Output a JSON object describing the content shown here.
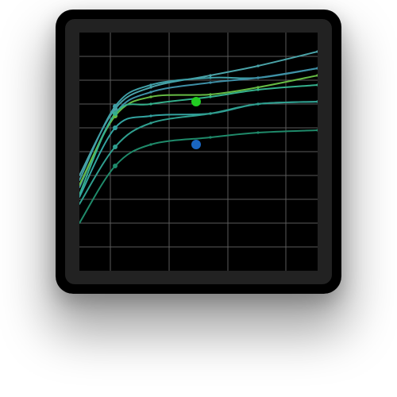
{
  "chart_data": {
    "type": "line",
    "title": "",
    "xlabel": "",
    "ylabel": "",
    "grid": true,
    "xlim": [
      0,
      10
    ],
    "ylim": [
      0,
      10
    ],
    "x": [
      0,
      1.5,
      3,
      5.5,
      7.5,
      10
    ],
    "series": [
      {
        "color": "#4aa3a8",
        "values": [
          4.0,
          6.8,
          7.7,
          8.2,
          8.6,
          9.2
        ]
      },
      {
        "color": "#3f9fa6",
        "values": [
          3.8,
          6.9,
          7.8,
          8.1,
          8.1,
          8.5
        ]
      },
      {
        "color": "#3e8fa6",
        "values": [
          3.5,
          6.6,
          7.5,
          7.9,
          8.1,
          8.5
        ]
      },
      {
        "color": "#66bb44",
        "values": [
          3.6,
          6.5,
          7.3,
          7.4,
          7.7,
          8.2
        ]
      },
      {
        "color": "#34b08c",
        "values": [
          3.2,
          6.6,
          7.0,
          7.3,
          7.6,
          7.8
        ]
      },
      {
        "color": "#33a3a0",
        "values": [
          3.1,
          6.0,
          6.5,
          6.6,
          7.0,
          7.1
        ]
      },
      {
        "color": "#2f9e8e",
        "values": [
          2.8,
          5.2,
          6.2,
          6.6,
          7.0,
          7.1
        ]
      },
      {
        "color": "#1f8a6a",
        "values": [
          2.0,
          4.4,
          5.3,
          5.6,
          5.8,
          5.9
        ]
      }
    ],
    "highlight_points": [
      {
        "x": 4.9,
        "y": 7.1,
        "color": "#22cc22"
      },
      {
        "x": 4.9,
        "y": 5.3,
        "color": "#1a66c2"
      }
    ]
  }
}
